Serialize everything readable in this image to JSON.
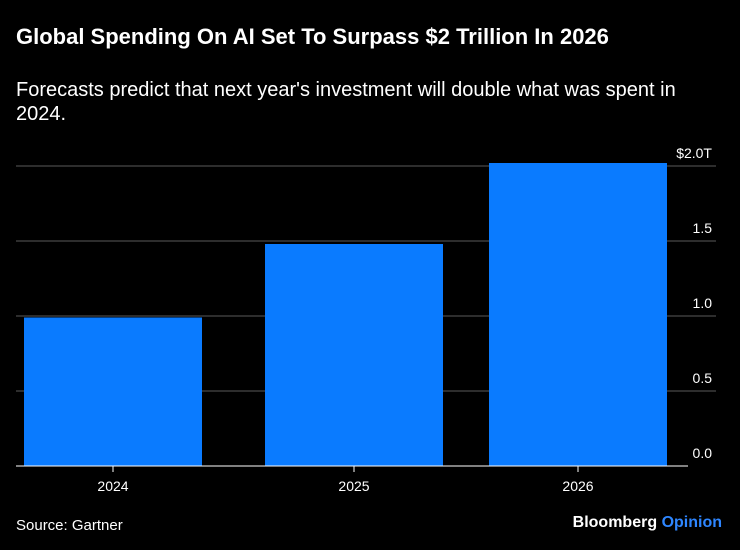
{
  "header": {
    "title": "Global Spending On AI Set To Surpass $2 Trillion In 2026",
    "subtitle": "Forecasts predict that next year's investment will double what was spent in 2024."
  },
  "footer": {
    "source": "Source: Gartner",
    "brand_main": "Bloomberg",
    "brand_accent": "Opinion"
  },
  "colors": {
    "background": "#000000",
    "bar": "#0a7bff",
    "gridline": "#5a5a5a",
    "brand_accent": "#2e86ff"
  },
  "chart_data": {
    "type": "bar",
    "title": "Global Spending On AI Set To Surpass $2 Trillion In 2026",
    "subtitle": "Forecasts predict that next year's investment will double what was spent in 2024.",
    "categories": [
      "2024",
      "2025",
      "2026"
    ],
    "values": [
      0.99,
      1.48,
      2.02
    ],
    "unit": "Trillion USD",
    "xlabel": "",
    "ylabel": "",
    "ylim": [
      0,
      2.0
    ],
    "yticks": [
      0,
      0.5,
      1.0,
      1.5,
      2.0
    ],
    "ytick_labels": [
      "0.0",
      "0.5",
      "1.0",
      "1.5",
      "$2.0T"
    ],
    "grid": true,
    "yaxis_side": "right",
    "legend": "none"
  }
}
